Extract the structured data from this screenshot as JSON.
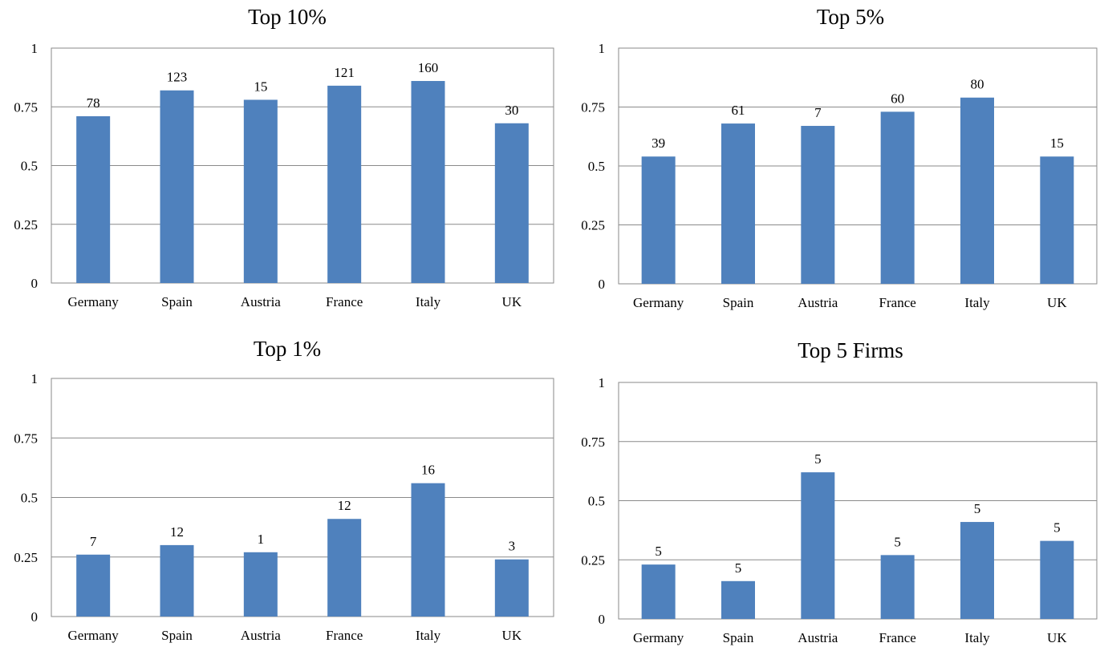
{
  "chart_data": [
    {
      "type": "bar",
      "title": "Top 10%",
      "categories": [
        "Germany",
        "Spain",
        "Austria",
        "France",
        "Italy",
        "UK"
      ],
      "values": [
        0.71,
        0.82,
        0.78,
        0.84,
        0.86,
        0.68
      ],
      "data_labels": [
        "78",
        "123",
        "15",
        "121",
        "160",
        "30"
      ],
      "yticks": [
        "0",
        "0.25",
        "0.5",
        "0.75",
        "1"
      ],
      "ylim": [
        0,
        1
      ],
      "grid": true,
      "color": "#4F81BD"
    },
    {
      "type": "bar",
      "title": "Top 5%",
      "categories": [
        "Germany",
        "Spain",
        "Austria",
        "France",
        "Italy",
        "UK"
      ],
      "values": [
        0.54,
        0.68,
        0.67,
        0.73,
        0.79,
        0.54
      ],
      "data_labels": [
        "39",
        "61",
        "7",
        "60",
        "80",
        "15"
      ],
      "yticks": [
        "0",
        "0.25",
        "0.5",
        "0.75",
        "1"
      ],
      "ylim": [
        0,
        1
      ],
      "grid": true,
      "color": "#4F81BD"
    },
    {
      "type": "bar",
      "title": "Top 1%",
      "categories": [
        "Germany",
        "Spain",
        "Austria",
        "France",
        "Italy",
        "UK"
      ],
      "values": [
        0.26,
        0.3,
        0.27,
        0.41,
        0.56,
        0.24
      ],
      "data_labels": [
        "7",
        "12",
        "1",
        "12",
        "16",
        "3"
      ],
      "yticks": [
        "0",
        "0.25",
        "0.5",
        "0.75",
        "1"
      ],
      "ylim": [
        0,
        1
      ],
      "grid": true,
      "color": "#4F81BD"
    },
    {
      "type": "bar",
      "title": "Top 5 Firms",
      "categories": [
        "Germany",
        "Spain",
        "Austria",
        "France",
        "Italy",
        "UK"
      ],
      "values": [
        0.23,
        0.16,
        0.62,
        0.27,
        0.41,
        0.33
      ],
      "data_labels": [
        "5",
        "5",
        "5",
        "5",
        "5",
        "5"
      ],
      "yticks": [
        "0",
        "0.25",
        "0.5",
        "0.75",
        "1"
      ],
      "ylim": [
        0,
        1
      ],
      "grid": true,
      "color": "#4F81BD"
    }
  ]
}
